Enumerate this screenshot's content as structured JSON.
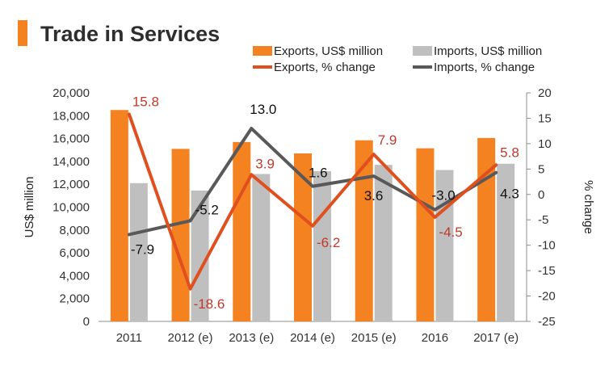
{
  "header": {
    "title": "Trade in Services"
  },
  "chart_data": {
    "type": "bar+line",
    "title": "Trade in Services",
    "categories": [
      "2011",
      "2012 (e)",
      "2013 (e)",
      "2014 (e)",
      "2015 (e)",
      "2016",
      "2017 (e)"
    ],
    "bar_series": [
      {
        "name": "Exports, US$ million",
        "color": "#f58220",
        "values": [
          18500,
          15100,
          15700,
          14700,
          15850,
          15150,
          16050
        ]
      },
      {
        "name": "Imports, US$ million",
        "color": "#bfbfbf",
        "values": [
          12100,
          11450,
          12900,
          13150,
          13700,
          13250,
          13800
        ]
      }
    ],
    "line_series": [
      {
        "name": "Exports, % change",
        "color": "#e0501e",
        "label_color": "#c0392b",
        "values": [
          15.8,
          -18.6,
          3.9,
          -6.2,
          7.9,
          -4.5,
          5.8
        ],
        "labels": [
          "15.8",
          "-18.6",
          "3.9",
          "-6.2",
          "7.9",
          "-4.5",
          "5.8"
        ]
      },
      {
        "name": "Imports, % change",
        "color": "#595959",
        "label_color": "#111111",
        "values": [
          -7.9,
          -5.2,
          13.0,
          1.6,
          3.6,
          -3.0,
          4.3
        ],
        "labels": [
          "-7.9",
          "-5.2",
          "13.0",
          "1.6",
          "3.6",
          "-3.0",
          "4.3"
        ]
      }
    ],
    "y_left": {
      "label": "US$ million",
      "min": 0,
      "max": 20000,
      "step": 2000,
      "ticks": [
        "0",
        "2,000",
        "4,000",
        "6,000",
        "8,000",
        "10,000",
        "12,000",
        "14,000",
        "16,000",
        "18,000",
        "20,000"
      ]
    },
    "y_right": {
      "label": "% change",
      "min": -25,
      "max": 20,
      "step": 5,
      "ticks": [
        "-25",
        "-20",
        "-15",
        "-10",
        "-5",
        "0",
        "5",
        "10",
        "15",
        "20"
      ]
    },
    "legend": [
      "Exports, US$ million",
      "Imports, US$ million",
      "Exports, % change",
      "Imports, % change"
    ],
    "legend_position": "top-right",
    "grid": false
  }
}
